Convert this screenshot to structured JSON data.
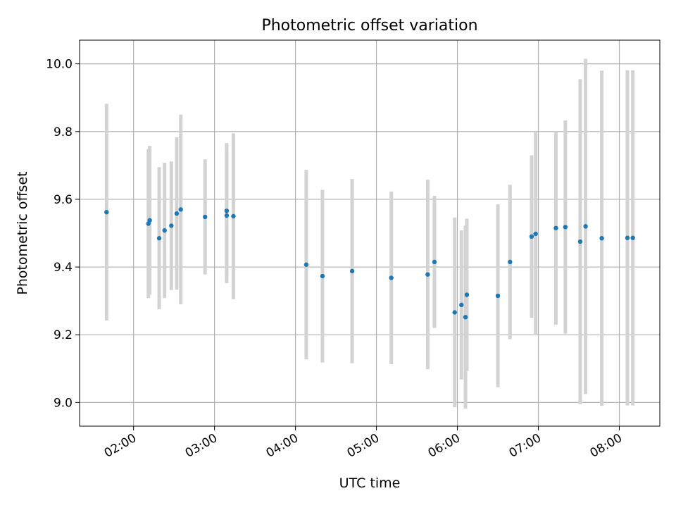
{
  "chart_data": {
    "type": "scatter",
    "title": "Photometric offset variation",
    "xlabel": "UTC time",
    "ylabel": "Photometric offset",
    "x_tick_labels": [
      "02:00",
      "03:00",
      "04:00",
      "05:00",
      "06:00",
      "07:00",
      "08:00"
    ],
    "x_tick_values": [
      "02:00",
      "03:00",
      "04:00",
      "05:00",
      "06:00",
      "07:00",
      "08:00"
    ],
    "y_tick_labels": [
      "9.0",
      "9.2",
      "9.4",
      "9.6",
      "9.8",
      "10.0"
    ],
    "y_tick_values": [
      9.0,
      9.2,
      9.4,
      9.6,
      9.8,
      10.0
    ],
    "xlim": [
      "01:20",
      "08:30"
    ],
    "ylim": [
      8.93,
      10.07
    ],
    "grid": true,
    "colors": {
      "points": "#1f77b4",
      "errorbars": "#d3d3d3",
      "grid": "#b0b0b0"
    },
    "points": [
      {
        "x": "01:40",
        "y": 9.562,
        "yerr": 0.32
      },
      {
        "x": "02:11",
        "y": 9.528,
        "yerr": 0.22
      },
      {
        "x": "02:12",
        "y": 9.538,
        "yerr": 0.22
      },
      {
        "x": "02:19",
        "y": 9.485,
        "yerr": 0.21
      },
      {
        "x": "02:23",
        "y": 9.508,
        "yerr": 0.2
      },
      {
        "x": "02:28",
        "y": 9.522,
        "yerr": 0.19
      },
      {
        "x": "02:32",
        "y": 9.558,
        "yerr": 0.225
      },
      {
        "x": "02:35",
        "y": 9.57,
        "yerr": 0.28
      },
      {
        "x": "02:53",
        "y": 9.548,
        "yerr": 0.17
      },
      {
        "x": "03:09",
        "y": 9.566,
        "yerr": 0.2
      },
      {
        "x": "03:09",
        "y": 9.552,
        "yerr": 0.2
      },
      {
        "x": "03:14",
        "y": 9.55,
        "yerr": 0.245
      },
      {
        "x": "04:08",
        "y": 9.407,
        "yerr": 0.28
      },
      {
        "x": "04:20",
        "y": 9.373,
        "yerr": 0.255
      },
      {
        "x": "04:42",
        "y": 9.388,
        "yerr": 0.272
      },
      {
        "x": "05:11",
        "y": 9.368,
        "yerr": 0.255
      },
      {
        "x": "05:38",
        "y": 9.378,
        "yerr": 0.28
      },
      {
        "x": "05:43",
        "y": 9.415,
        "yerr": 0.195
      },
      {
        "x": "05:58",
        "y": 9.266,
        "yerr": 0.28
      },
      {
        "x": "06:03",
        "y": 9.288,
        "yerr": 0.22
      },
      {
        "x": "06:06",
        "y": 9.252,
        "yerr": 0.27
      },
      {
        "x": "06:07",
        "y": 9.318,
        "yerr": 0.225
      },
      {
        "x": "06:30",
        "y": 9.315,
        "yerr": 0.27
      },
      {
        "x": "06:39",
        "y": 9.415,
        "yerr": 0.228
      },
      {
        "x": "06:55",
        "y": 9.49,
        "yerr": 0.24
      },
      {
        "x": "06:58",
        "y": 9.498,
        "yerr": 0.3
      },
      {
        "x": "07:13",
        "y": 9.515,
        "yerr": 0.285
      },
      {
        "x": "07:20",
        "y": 9.518,
        "yerr": 0.315
      },
      {
        "x": "07:31",
        "y": 9.475,
        "yerr": 0.48
      },
      {
        "x": "07:35",
        "y": 9.52,
        "yerr": 0.495
      },
      {
        "x": "07:47",
        "y": 9.485,
        "yerr": 0.495
      },
      {
        "x": "08:06",
        "y": 9.486,
        "yerr": 0.495
      },
      {
        "x": "08:10",
        "y": 9.486,
        "yerr": 0.495
      }
    ]
  }
}
